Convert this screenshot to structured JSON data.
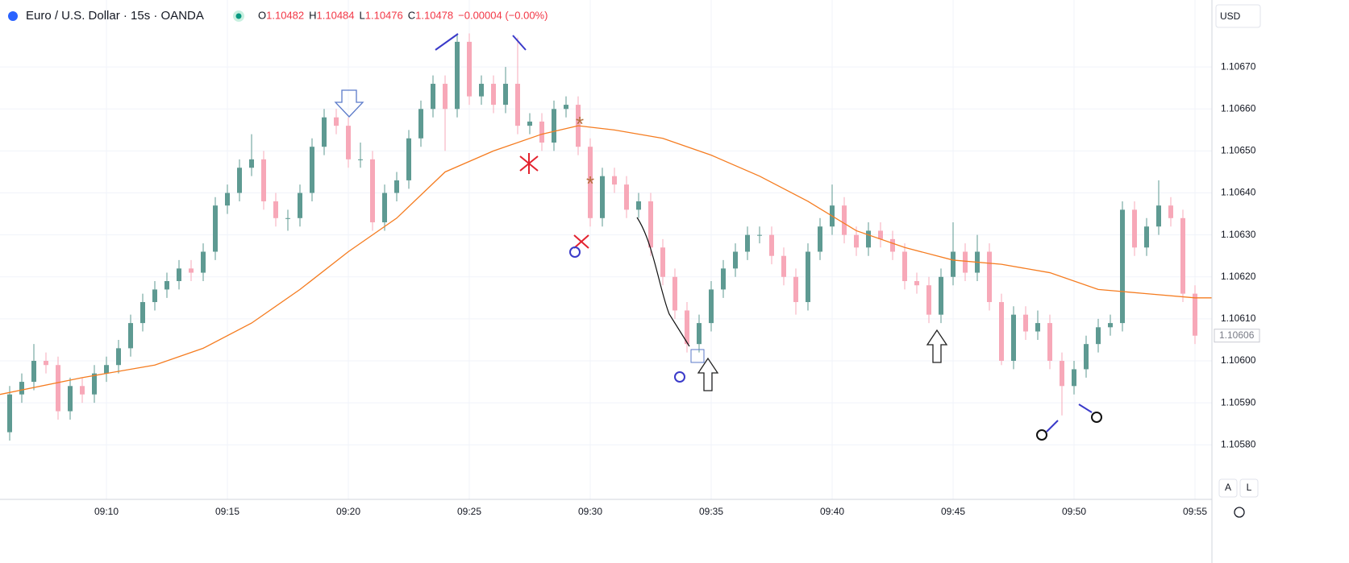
{
  "header": {
    "symbol": "Euro / U.S. Dollar · 15s · OANDA",
    "ohlc": [
      {
        "label": "O",
        "value": "1.10482"
      },
      {
        "label": "H",
        "value": "1.10484"
      },
      {
        "label": "L",
        "value": "1.10476"
      },
      {
        "label": "C",
        "value": "1.10478"
      }
    ],
    "change": "−0.00004 (−0.00%)",
    "currency": "USD",
    "buttons": [
      "A",
      "L"
    ]
  },
  "chart_data": {
    "type": "candlestick",
    "up_color": "#5e9a92",
    "down_color": "#f7a8b8",
    "grid": true,
    "xlim": [
      5.6,
      55.7
    ],
    "ylim": [
      1.10567,
      1.10685
    ],
    "xticks": [
      {
        "value": 10,
        "label": "09:10"
      },
      {
        "value": 15,
        "label": "09:15"
      },
      {
        "value": 20,
        "label": "09:20"
      },
      {
        "value": 25,
        "label": "09:25"
      },
      {
        "value": 30,
        "label": "09:30"
      },
      {
        "value": 35,
        "label": "09:35"
      },
      {
        "value": 40,
        "label": "09:40"
      },
      {
        "value": 45,
        "label": "09:45"
      },
      {
        "value": 50,
        "label": "09:50"
      },
      {
        "value": 55,
        "label": "09:55"
      }
    ],
    "yticks": [
      {
        "value": 1.1058,
        "label": "1.10580"
      },
      {
        "value": 1.1059,
        "label": "1.10590"
      },
      {
        "value": 1.106,
        "label": "1.10600"
      },
      {
        "value": 1.1061,
        "label": "1.10610"
      },
      {
        "value": 1.1062,
        "label": "1.10620"
      },
      {
        "value": 1.1063,
        "label": "1.10630"
      },
      {
        "value": 1.1064,
        "label": "1.10640"
      },
      {
        "value": 1.1065,
        "label": "1.10650"
      },
      {
        "value": 1.1066,
        "label": "1.10660"
      },
      {
        "value": 1.1067,
        "label": "1.10670"
      }
    ],
    "last_price": 1.10606,
    "x": [
      6,
      6.5,
      7,
      7.5,
      8,
      8.5,
      9,
      9.5,
      10,
      10.5,
      11,
      11.5,
      12,
      12.5,
      13,
      13.5,
      14,
      14.5,
      15,
      15.5,
      16,
      16.5,
      17,
      17.5,
      18,
      18.5,
      19,
      19.5,
      20,
      20.5,
      21,
      21.5,
      22,
      22.5,
      23,
      23.5,
      24,
      24.5,
      25,
      25.5,
      26,
      26.5,
      27,
      27.5,
      28,
      28.5,
      29,
      29.5,
      30,
      30.5,
      31,
      31.5,
      32,
      32.5,
      33,
      33.5,
      34,
      34.5,
      35,
      35.5,
      36,
      36.5,
      37,
      37.5,
      38,
      38.5,
      39,
      39.5,
      40,
      40.5,
      41,
      41.5,
      42,
      42.5,
      43,
      43.5,
      44,
      44.5,
      45,
      45.5,
      46,
      46.5,
      47,
      47.5,
      48,
      48.5,
      49,
      49.5,
      50,
      50.5,
      51,
      51.5,
      52,
      52.5,
      53,
      53.5,
      54,
      54.5,
      55
    ],
    "open": [
      1.10583,
      1.10592,
      1.10595,
      1.106,
      1.10599,
      1.10588,
      1.10594,
      1.10592,
      1.10597,
      1.10599,
      1.10603,
      1.10609,
      1.10614,
      1.10617,
      1.10619,
      1.10622,
      1.10621,
      1.10626,
      1.10637,
      1.1064,
      1.10646,
      1.10648,
      1.10638,
      1.10634,
      1.10634,
      1.1064,
      1.10651,
      1.10658,
      1.10656,
      1.10648,
      1.10648,
      1.10633,
      1.1064,
      1.10643,
      1.10653,
      1.1066,
      1.10666,
      1.1066,
      1.10676,
      1.10663,
      1.10666,
      1.10661,
      1.10666,
      1.10656,
      1.10657,
      1.10652,
      1.1066,
      1.10661,
      1.10651,
      1.10634,
      1.10644,
      1.10642,
      1.10636,
      1.10638,
      1.10627,
      1.1062,
      1.10612,
      1.10604,
      1.10609,
      1.10617,
      1.10622,
      1.10626,
      1.1063,
      1.1063,
      1.10625,
      1.1062,
      1.10614,
      1.10626,
      1.10632,
      1.10637,
      1.1063,
      1.10627,
      1.10631,
      1.10629,
      1.10626,
      1.10619,
      1.10618,
      1.10611,
      1.1062,
      1.10626,
      1.10621,
      1.10626,
      1.10614,
      1.106,
      1.10611,
      1.10607,
      1.10609,
      1.106,
      1.10594,
      1.10598,
      1.10604,
      1.10608,
      1.10609,
      1.10636,
      1.10627,
      1.10632,
      1.10637,
      1.10634,
      1.10616
    ],
    "high": [
      1.10594,
      1.10597,
      1.10604,
      1.10602,
      1.10601,
      1.10596,
      1.10596,
      1.10599,
      1.10601,
      1.10605,
      1.10611,
      1.10616,
      1.10619,
      1.10621,
      1.10624,
      1.10624,
      1.10628,
      1.10639,
      1.10642,
      1.10648,
      1.10654,
      1.1065,
      1.1064,
      1.10636,
      1.10642,
      1.10653,
      1.1066,
      1.1066,
      1.10658,
      1.10652,
      1.1065,
      1.10642,
      1.10645,
      1.10655,
      1.10662,
      1.10668,
      1.10668,
      1.10678,
      1.10678,
      1.10668,
      1.10668,
      1.1067,
      1.10677,
      1.10659,
      1.10659,
      1.10662,
      1.10663,
      1.10663,
      1.10653,
      1.10646,
      1.10646,
      1.10644,
      1.1064,
      1.1064,
      1.10629,
      1.10622,
      1.10614,
      1.10611,
      1.10619,
      1.10624,
      1.10628,
      1.10632,
      1.10632,
      1.10632,
      1.10627,
      1.10622,
      1.10628,
      1.10634,
      1.10642,
      1.10639,
      1.10632,
      1.10633,
      1.10633,
      1.10631,
      1.10628,
      1.10621,
      1.1062,
      1.10622,
      1.10633,
      1.10628,
      1.1063,
      1.10628,
      1.10616,
      1.10613,
      1.10613,
      1.10612,
      1.10611,
      1.10602,
      1.106,
      1.10606,
      1.1061,
      1.10611,
      1.10638,
      1.10638,
      1.10634,
      1.10643,
      1.10639,
      1.10636,
      1.10618
    ],
    "low": [
      1.10581,
      1.1059,
      1.10593,
      1.10597,
      1.10586,
      1.10586,
      1.1059,
      1.1059,
      1.10595,
      1.10597,
      1.10601,
      1.10607,
      1.10612,
      1.10615,
      1.10617,
      1.10619,
      1.10619,
      1.10624,
      1.10635,
      1.10638,
      1.10644,
      1.10636,
      1.10632,
      1.10631,
      1.10632,
      1.10638,
      1.10649,
      1.10654,
      1.10646,
      1.10646,
      1.10631,
      1.10631,
      1.10638,
      1.10641,
      1.10651,
      1.10658,
      1.1065,
      1.10658,
      1.10661,
      1.10661,
      1.10659,
      1.10659,
      1.10654,
      1.10654,
      1.1065,
      1.1065,
      1.10658,
      1.10649,
      1.10632,
      1.10632,
      1.1064,
      1.10634,
      1.10634,
      1.10625,
      1.10618,
      1.1061,
      1.10602,
      1.10602,
      1.10607,
      1.10615,
      1.1062,
      1.10624,
      1.10628,
      1.10623,
      1.10618,
      1.10611,
      1.10612,
      1.10624,
      1.1063,
      1.10628,
      1.10625,
      1.10625,
      1.10627,
      1.10624,
      1.10617,
      1.10616,
      1.10609,
      1.10609,
      1.10618,
      1.10619,
      1.10619,
      1.10612,
      1.10599,
      1.10598,
      1.10605,
      1.10605,
      1.10598,
      1.10587,
      1.10592,
      1.10596,
      1.10602,
      1.10606,
      1.10607,
      1.10625,
      1.10625,
      1.1063,
      1.10632,
      1.10614,
      1.10604
    ],
    "close": [
      1.10592,
      1.10595,
      1.106,
      1.10599,
      1.10588,
      1.10594,
      1.10592,
      1.10597,
      1.10599,
      1.10603,
      1.10609,
      1.10614,
      1.10617,
      1.10619,
      1.10622,
      1.10621,
      1.10626,
      1.10637,
      1.1064,
      1.10646,
      1.10648,
      1.10638,
      1.10634,
      1.10634,
      1.1064,
      1.10651,
      1.10658,
      1.10656,
      1.10648,
      1.10648,
      1.10633,
      1.1064,
      1.10643,
      1.10653,
      1.1066,
      1.10666,
      1.1066,
      1.10676,
      1.10663,
      1.10666,
      1.10661,
      1.10666,
      1.10656,
      1.10657,
      1.10652,
      1.1066,
      1.10661,
      1.10651,
      1.10634,
      1.10644,
      1.10642,
      1.10636,
      1.10638,
      1.10627,
      1.1062,
      1.10612,
      1.10604,
      1.10609,
      1.10617,
      1.10622,
      1.10626,
      1.1063,
      1.1063,
      1.10625,
      1.1062,
      1.10614,
      1.10626,
      1.10632,
      1.10637,
      1.1063,
      1.10627,
      1.10631,
      1.10629,
      1.10626,
      1.10619,
      1.10618,
      1.10611,
      1.1062,
      1.10626,
      1.10621,
      1.10626,
      1.10614,
      1.106,
      1.10611,
      1.10607,
      1.10609,
      1.106,
      1.10594,
      1.10598,
      1.10604,
      1.10608,
      1.10609,
      1.10636,
      1.10627,
      1.10632,
      1.10637,
      1.10634,
      1.10616,
      1.10606
    ],
    "ma": {
      "color": "#f57c20",
      "x": [
        5.6,
        9,
        12,
        14,
        16,
        18,
        20,
        22,
        24,
        26,
        28,
        29.5,
        31,
        33,
        35,
        37,
        39,
        41,
        43,
        45,
        47,
        49,
        51,
        53,
        55,
        55.7
      ],
      "values": [
        1.10592,
        1.10596,
        1.10599,
        1.10603,
        1.10609,
        1.10617,
        1.10626,
        1.10634,
        1.10645,
        1.1065,
        1.10654,
        1.10656,
        1.10655,
        1.10653,
        1.10649,
        1.10644,
        1.10638,
        1.10631,
        1.10627,
        1.10624,
        1.10623,
        1.10621,
        1.10617,
        1.10616,
        1.10615,
        1.10615
      ]
    }
  }
}
